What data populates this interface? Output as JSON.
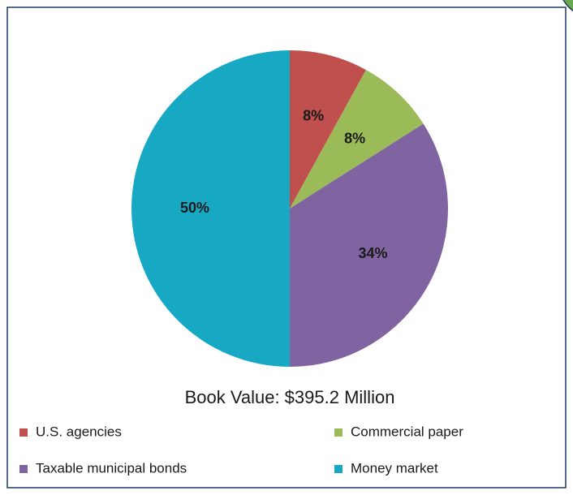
{
  "chart_data": {
    "type": "pie",
    "title": "Book Value: $395.2 Million",
    "categories": [
      "U.S. agencies",
      "Commercial paper",
      "Taxable municipal bonds",
      "Money market"
    ],
    "values": [
      8,
      8,
      34,
      50
    ],
    "value_labels": [
      "8%",
      "8%",
      "34%",
      "50%"
    ],
    "colors": [
      "#c0504d",
      "#9bbb59",
      "#8064a2",
      "#17a9c4"
    ],
    "legend": "bottom"
  }
}
